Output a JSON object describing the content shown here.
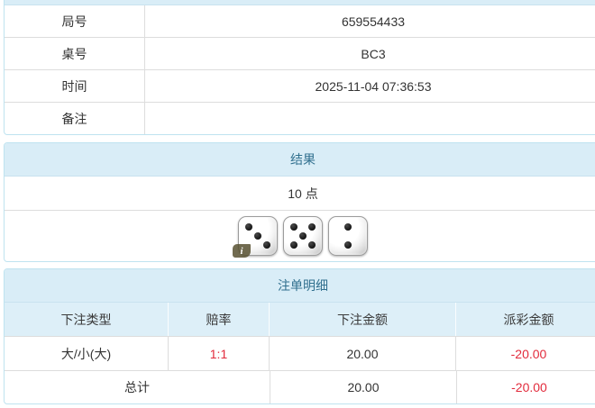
{
  "colors": {
    "accent_bg": "#d9edf7",
    "accent_text": "#31708f",
    "panel_border": "#bfe3f0",
    "row_line": "#dddddd",
    "negative_red": "#e22b3c"
  },
  "info_table": {
    "rows": [
      {
        "label": "局号",
        "value": "659554433"
      },
      {
        "label": "桌号",
        "value": "BC3"
      },
      {
        "label": "时间",
        "value": "2025-11-04 07:36:53"
      },
      {
        "label": "备注",
        "value": ""
      }
    ]
  },
  "result_panel": {
    "title": "结果",
    "points_text": "10 点",
    "dice": [
      3,
      5,
      2
    ],
    "info_badge_label": "i"
  },
  "bets_panel": {
    "title": "注单明细",
    "columns": [
      "下注类型",
      "赔率",
      "下注金额",
      "派彩金额"
    ],
    "rows": [
      {
        "bet_type": "大/小(大)",
        "odds": "1:1",
        "bet_amount": "20.00",
        "payout": "-20.00"
      }
    ],
    "total": {
      "label": "总计",
      "bet_amount": "20.00",
      "payout": "-20.00"
    }
  }
}
